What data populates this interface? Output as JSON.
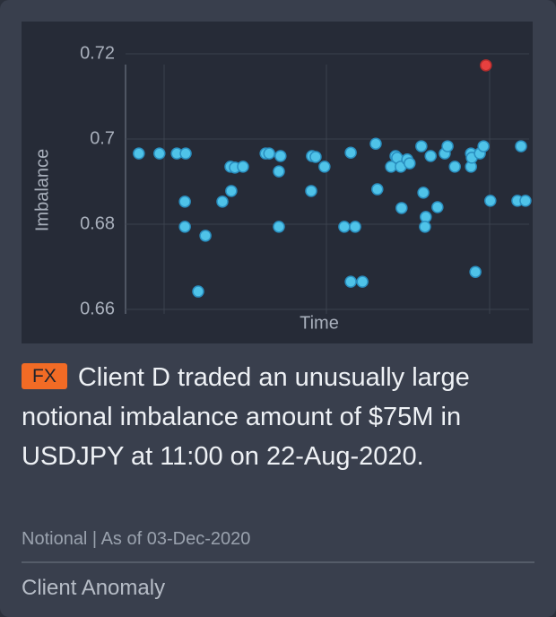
{
  "chart_data": {
    "type": "scatter",
    "x_label": "Time",
    "y_label": "Imbalance",
    "x": [
      3.3,
      8.4,
      12.7,
      14.9,
      14.7,
      14.7,
      18,
      19.8,
      24,
      26,
      26.2,
      27.1,
      29.1,
      34.7,
      35.6,
      38.4,
      38,
      38,
      46,
      46.2,
      47.1,
      49.3,
      54.2,
      56.9,
      55.8,
      55.8,
      58.7,
      62,
      62.4,
      65.8,
      66.9,
      67.3,
      68.2,
      68.4,
      69.8,
      70.4,
      73.3,
      73.8,
      74.4,
      74.2,
      75.6,
      77.3,
      79.1,
      79.8,
      81.6,
      85.6,
      85.6,
      85.8,
      86.7,
      87.8,
      88.7,
      89.3,
      90.4,
      97.1,
      99.1,
      98
    ],
    "values": [
      0.6966,
      0.6966,
      0.6966,
      0.6966,
      0.6853,
      0.6794,
      0.6642,
      0.6773,
      0.6853,
      0.6935,
      0.6878,
      0.6933,
      0.6935,
      0.6966,
      0.6966,
      0.696,
      0.6924,
      0.6794,
      0.6878,
      0.696,
      0.6958,
      0.6935,
      0.6794,
      0.6794,
      0.6968,
      0.6665,
      0.6665,
      0.6989,
      0.6882,
      0.6935,
      0.696,
      0.6956,
      0.6935,
      0.6838,
      0.6952,
      0.6943,
      0.6983,
      0.6874,
      0.6817,
      0.6794,
      0.696,
      0.684,
      0.6966,
      0.6983,
      0.6935,
      0.6966,
      0.6935,
      0.6956,
      0.6688,
      0.6966,
      0.6983,
      0.7173,
      0.6855,
      0.6855,
      0.6855,
      0.6983
    ],
    "color": "#4fc3e8",
    "highlight_color": "#e8403f",
    "highlight_index": 51,
    "xlim": [
      0,
      100
    ],
    "ylim": [
      0.66,
      0.72
    ],
    "yticks": [
      0.66,
      0.68,
      0.7,
      0.72
    ],
    "grid": true
  },
  "tag": "FX",
  "headline": "Client D traded an unusually large notional imbalance amount of $75M in USDJPY at 11:00 on 22-Aug-2020.",
  "meta": "Notional | As of 03-Dec-2020",
  "footer": "Client Anomaly"
}
